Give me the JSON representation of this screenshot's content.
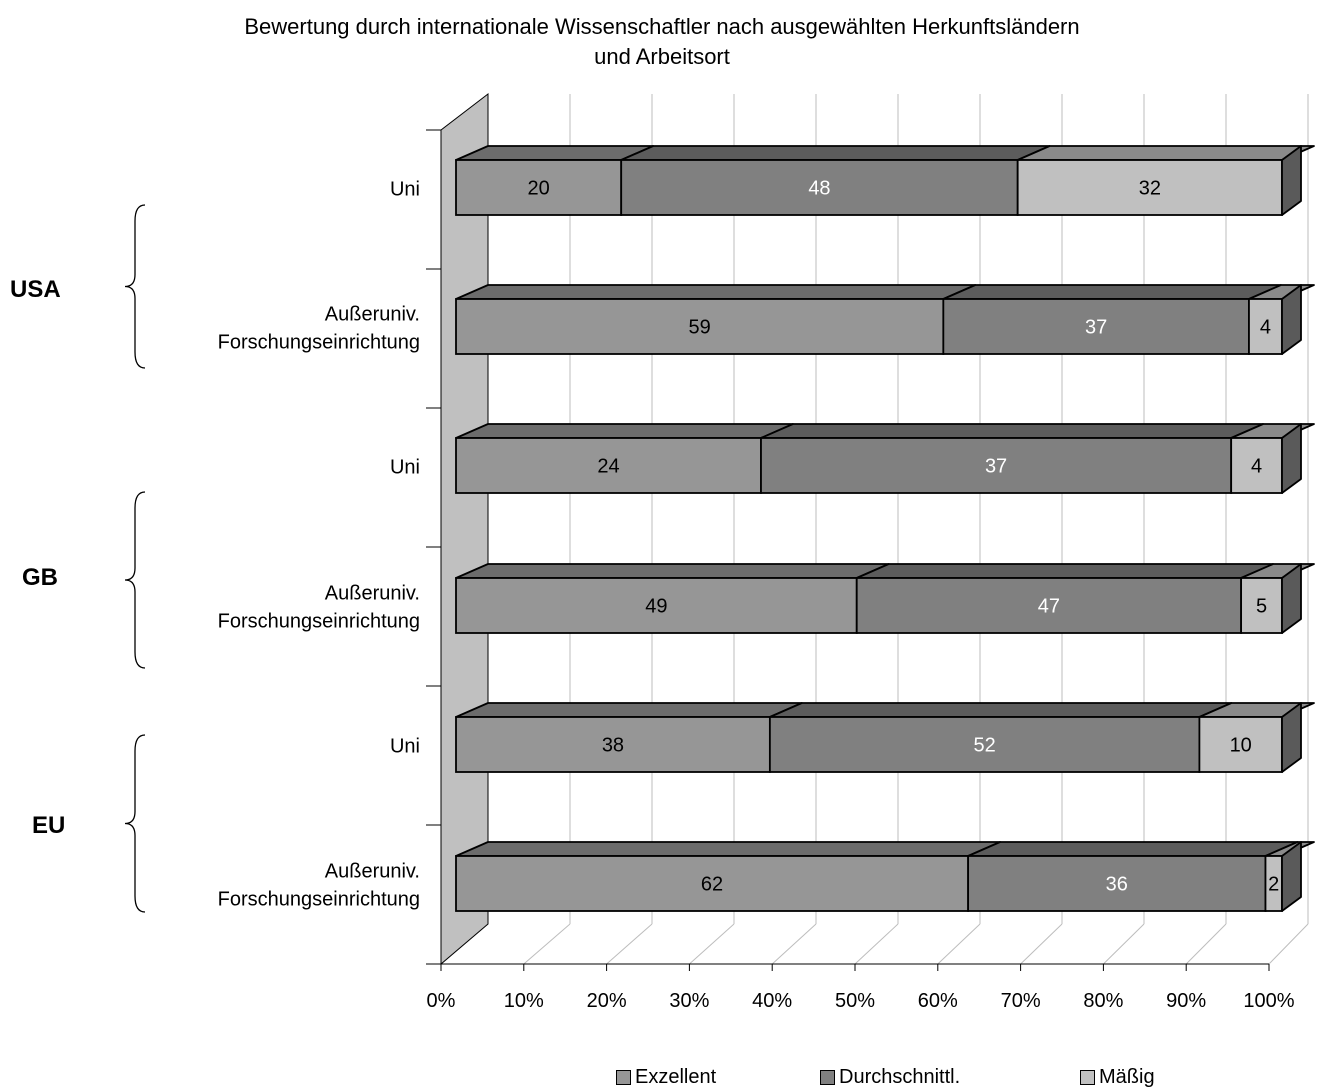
{
  "chart_data": {
    "type": "bar",
    "stacked": true,
    "orientation": "horizontal",
    "three_d": true,
    "title": "Bewertung durch internationale Wissenschaftler nach ausgewählten Herkunftsländern und Arbeitsort",
    "title_lines": [
      "Bewertung durch internationale Wissenschaftler nach ausgewählten Herkunftsländern",
      "und Arbeitsort"
    ],
    "categories": [
      {
        "group": "USA",
        "label_lines": [
          "Uni"
        ]
      },
      {
        "group": "USA",
        "label_lines": [
          "Außeruniv.",
          "Forschungseinrichtung"
        ]
      },
      {
        "group": "GB",
        "label_lines": [
          "Uni"
        ]
      },
      {
        "group": "GB",
        "label_lines": [
          "Außeruniv.",
          "Forschungseinrichtung"
        ]
      },
      {
        "group": "EU",
        "label_lines": [
          "Uni"
        ]
      },
      {
        "group": "EU",
        "label_lines": [
          "Außeruniv.",
          "Forschungseinrichtung"
        ]
      }
    ],
    "groups": [
      "USA",
      "GB",
      "EU"
    ],
    "series": [
      {
        "name": "Exzellent",
        "color": "#969696",
        "label_color": "#000000",
        "values": [
          20,
          59,
          24,
          49,
          38,
          62
        ]
      },
      {
        "name": "Durchschnittl.",
        "color": "#808080",
        "label_color": "#ffffff",
        "values": [
          48,
          37,
          37,
          47,
          52,
          36
        ]
      },
      {
        "name": "Mäßig",
        "color": "#c0c0c0",
        "label_color": "#000000",
        "values": [
          32,
          4,
          4,
          5,
          10,
          2
        ]
      }
    ],
    "x_ticks": [
      "0%",
      "10%",
      "20%",
      "30%",
      "40%",
      "50%",
      "60%",
      "70%",
      "80%",
      "90%",
      "100%"
    ],
    "xlim": [
      0,
      100
    ],
    "grid": true,
    "legend_position": "bottom"
  }
}
